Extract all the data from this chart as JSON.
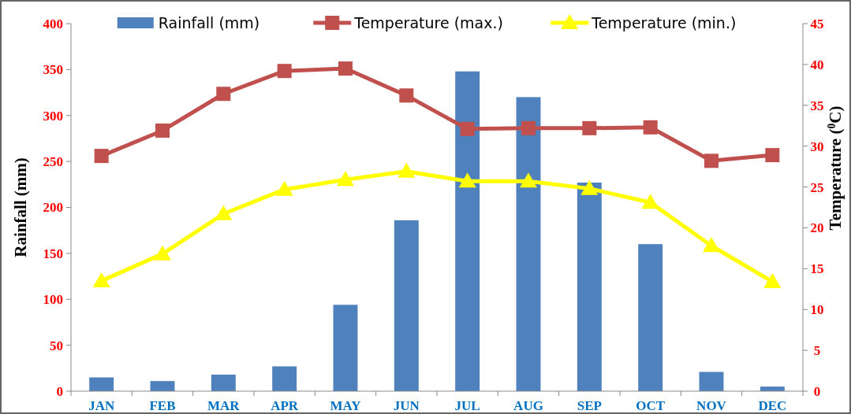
{
  "chart_data": {
    "type": "bar",
    "ylabel": "Rainfall (mm)",
    "y2label": "Temperature  ($^{0}$C)",
    "categories": [
      "JAN",
      "FEB",
      "MAR",
      "APR",
      "MAY",
      "JUN",
      "JUL",
      "AUG",
      "SEP",
      "OCT",
      "NOV",
      "DEC"
    ],
    "series": [
      {
        "name": "Rainfall (mm)",
        "color": "#4f81bd",
        "values": [
          15,
          11,
          18,
          27,
          94,
          186,
          348,
          320,
          227,
          160,
          21,
          5
        ]
      },
      {
        "name": "Temperature (max.)",
        "type": "line",
        "axis": "y2",
        "marker": "square",
        "color": "#c0504d",
        "values": [
          28.8,
          31.9,
          36.4,
          39.2,
          39.5,
          36.2,
          32.1,
          32.2,
          32.2,
          32.3,
          28.2,
          28.9
        ]
      },
      {
        "name": "Temperature (min.)",
        "type": "line",
        "axis": "y2",
        "marker": "triangle",
        "color": "#ffff00",
        "values": [
          13.5,
          16.8,
          21.7,
          24.7,
          25.9,
          26.9,
          25.7,
          25.7,
          24.8,
          23.1,
          17.8,
          13.4
        ]
      }
    ],
    "ylim": [
      0,
      400
    ],
    "yticks": [
      0,
      50,
      100,
      150,
      200,
      250,
      300,
      350,
      400
    ],
    "y2lim": [
      0,
      45
    ],
    "y2ticks": [
      0,
      5,
      10,
      15,
      20,
      25,
      30,
      35,
      40,
      45
    ],
    "grid": false,
    "legend": "top"
  }
}
